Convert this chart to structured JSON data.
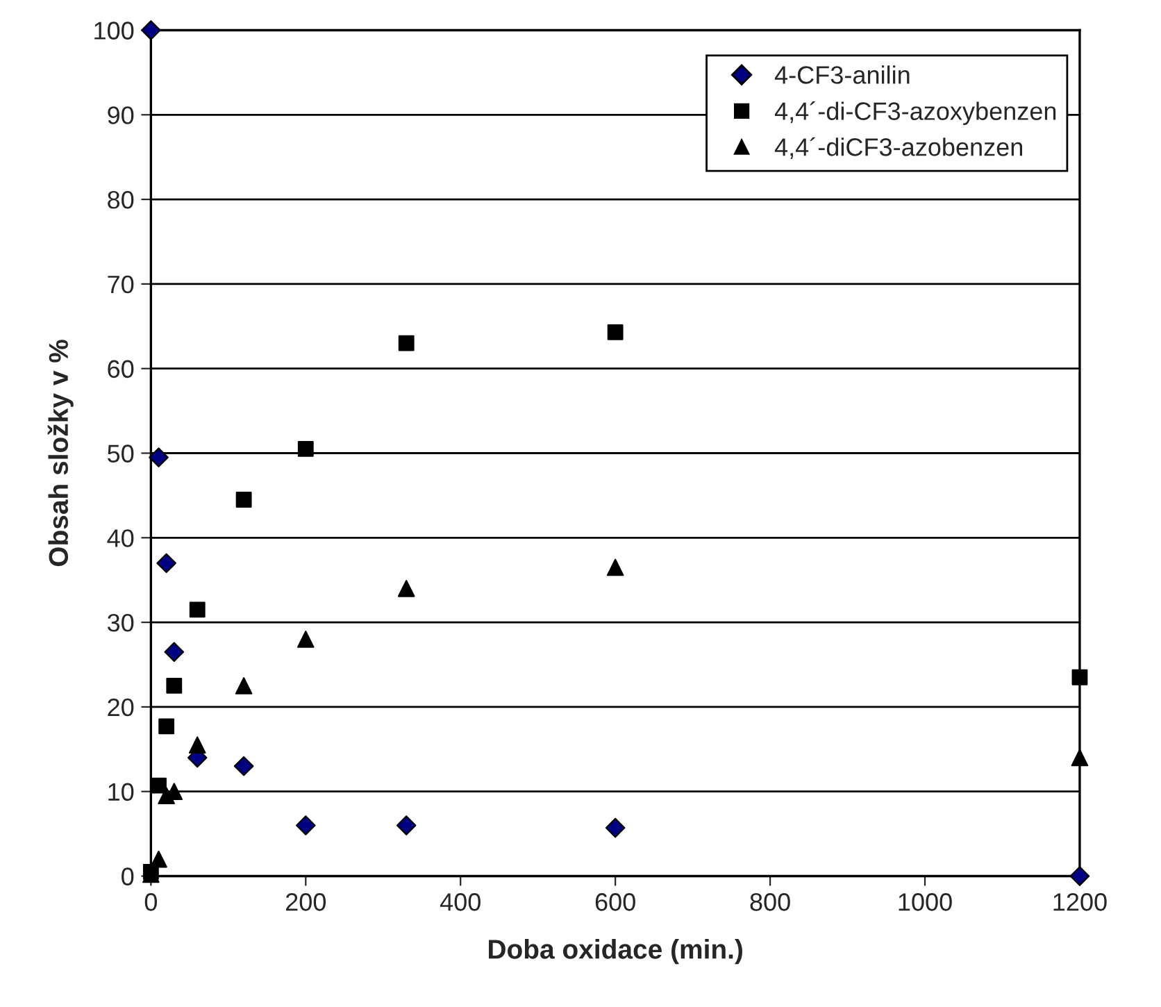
{
  "chart_data": {
    "type": "scatter",
    "xlabel": "Doba oxidace (min.)",
    "ylabel": "Obsah složky v %",
    "x": [
      0,
      10,
      20,
      30,
      60,
      120,
      200,
      330,
      600,
      1200
    ],
    "series": [
      {
        "name": "4-CF3-anilin",
        "color": "#000080",
        "marker": "diamond",
        "values": [
          100,
          49.5,
          37,
          26.5,
          14,
          13,
          6,
          6,
          5.7,
          0
        ]
      },
      {
        "name": "4,4´-di-CF3-azoxybenzen",
        "color": "#000000",
        "marker": "square",
        "values": [
          0.5,
          10.7,
          17.7,
          22.5,
          31.5,
          44.5,
          50.5,
          63,
          64.3,
          23.5
        ]
      },
      {
        "name": "4,4´-diCF3-azobenzen",
        "color": "#000000",
        "marker": "triangle",
        "values": [
          0.2,
          2,
          9.5,
          10,
          15.5,
          22.5,
          28,
          34,
          36.5,
          14
        ]
      }
    ],
    "xlim": [
      0,
      1200
    ],
    "xticks": [
      0,
      200,
      400,
      600,
      800,
      1000,
      1200
    ],
    "ylim": [
      0,
      100
    ],
    "yticks": [
      0,
      10,
      20,
      30,
      40,
      50,
      60,
      70,
      80,
      90,
      100
    ],
    "grid": "y",
    "legend": "top right"
  }
}
